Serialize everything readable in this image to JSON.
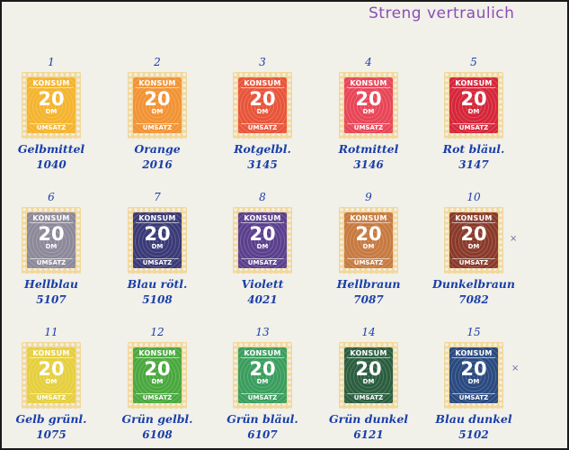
{
  "header_stamp": "Streng vertraulich",
  "stamp_text": {
    "top": "KONSUM",
    "value": "20",
    "unit": "DM",
    "bottom": "UMSATZ"
  },
  "stamps": [
    {
      "number": "1",
      "label": "Gelbmittel",
      "catalog": "1040",
      "color": "#f4b42e"
    },
    {
      "number": "2",
      "label": "Orange",
      "catalog": "2016",
      "color": "#f29334"
    },
    {
      "number": "3",
      "label": "Rotgelbl.",
      "catalog": "3145",
      "color": "#e8553a"
    },
    {
      "number": "4",
      "label": "Rotmittel",
      "catalog": "3146",
      "color": "#e84658"
    },
    {
      "number": "5",
      "label": "Rot bläul.",
      "catalog": "3147",
      "color": "#d6263a"
    },
    {
      "number": "6",
      "label": "Hellblau",
      "catalog": "5107",
      "color": "#8d899a"
    },
    {
      "number": "7",
      "label": "Blau rötl.",
      "catalog": "5108",
      "color": "#3a3a78"
    },
    {
      "number": "8",
      "label": "Violett",
      "catalog": "4021",
      "color": "#5b408e"
    },
    {
      "number": "9",
      "label": "Hellbraun",
      "catalog": "7087",
      "color": "#c77a40"
    },
    {
      "number": "10",
      "label": "Dunkelbraun",
      "catalog": "7082",
      "color": "#8a3a2a"
    },
    {
      "number": "11",
      "label": "Gelb grünl.",
      "catalog": "1075",
      "color": "#e6cf3e"
    },
    {
      "number": "12",
      "label": "Grün gelbl.",
      "catalog": "6108",
      "color": "#4aa83e"
    },
    {
      "number": "13",
      "label": "Grün bläul.",
      "catalog": "6107",
      "color": "#3a9e5e"
    },
    {
      "number": "14",
      "label": "Grün dunkel",
      "catalog": "6121",
      "color": "#2b5e40"
    },
    {
      "number": "15",
      "label": "Blau dunkel",
      "catalog": "5102",
      "color": "#2a4a80"
    }
  ]
}
